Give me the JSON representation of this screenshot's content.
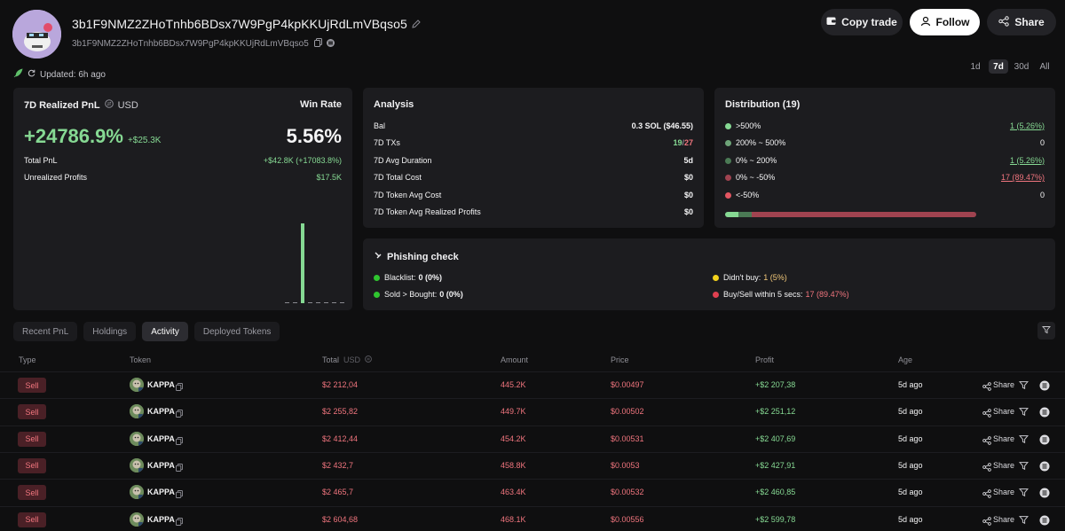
{
  "header": {
    "address": "3b1F9NMZ2ZHoTnhb6BDsx7W9PgP4kpKKUjRdLmVBqso5",
    "address_short": "3b1F9NMZ2ZHoTnhb6BDsx7W9PgP4kpKKUjRdLmVBqso5",
    "copy_trade_label": "Copy trade",
    "follow_label": "Follow",
    "share_label": "Share",
    "updated_text": "Updated: 6h ago"
  },
  "range_tabs": [
    "1d",
    "7d",
    "30d",
    "All"
  ],
  "range_selected": "7d",
  "pnl_card": {
    "title": "7D Realized PnL",
    "currency": "USD",
    "pnl_percent": "+24786.9%",
    "pnl_usd": "+$25.3K",
    "win_rate_label": "Win Rate",
    "win_rate": "5.56%",
    "total_pnl_label": "Total PnL",
    "total_pnl_value": "+$42.8K (+17083.8%)",
    "unrealized_label": "Unrealized Profits",
    "unrealized_value": "$17.5K"
  },
  "analysis": {
    "title": "Analysis",
    "rows": [
      {
        "label": "Bal",
        "value": "0.3 SOL ($46.55)"
      },
      {
        "label": "7D TXs",
        "value_green": "19",
        "value_sep": "/",
        "value_red": "27"
      },
      {
        "label": "7D Avg Duration",
        "value": "5d"
      },
      {
        "label": "7D Total Cost",
        "value": "$0"
      },
      {
        "label": "7D Token Avg Cost",
        "value": "$0"
      },
      {
        "label": "7D Token Avg Realized Profits",
        "value": "$0"
      }
    ]
  },
  "distribution": {
    "title": "Distribution (19)",
    "rows": [
      {
        "label": ">500%",
        "value": "1 (5.26%)",
        "color": "#86d993"
      },
      {
        "label": "200% ~ 500%",
        "value": "0",
        "color": "#6ea478"
      },
      {
        "label": "0% ~ 200%",
        "value": "1 (5.26%)",
        "color": "#4b7a55"
      },
      {
        "label": "0% ~ -50%",
        "value": "17 (89.47%)",
        "color": "#a04350"
      },
      {
        "label": "<-50%",
        "value": "0",
        "color": "#e25561"
      }
    ],
    "bar_segments": [
      0.0526,
      0.0526,
      0.8947
    ]
  },
  "phishing": {
    "title": "Phishing check",
    "blacklist_label": "Blacklist:",
    "blacklist_value": "0 (0%)",
    "sold_label": "Sold > Bought:",
    "sold_value": "0 (0%)",
    "didnt_buy_label": "Didn't buy:",
    "didnt_buy_value": "1 (5%)",
    "fast_label": "Buy/Sell within 5 secs:",
    "fast_value": "17 (89.47%)"
  },
  "tabs": [
    "Recent PnL",
    "Holdings",
    "Activity",
    "Deployed Tokens"
  ],
  "active_tab": "Activity",
  "table": {
    "headers": {
      "type": "Type",
      "token": "Token",
      "total": "Total",
      "total_unit": "USD",
      "amount": "Amount",
      "price": "Price",
      "profit": "Profit",
      "age": "Age"
    },
    "share_label": "Share",
    "rows": [
      {
        "type": "Sell",
        "token": "KAPPA",
        "total": "$2 212,04",
        "amount": "445.2K",
        "price": "$0.00497",
        "profit": "+$2 207,38",
        "age": "5d ago"
      },
      {
        "type": "Sell",
        "token": "KAPPA",
        "total": "$2 255,82",
        "amount": "449.7K",
        "price": "$0.00502",
        "profit": "+$2 251,12",
        "age": "5d ago"
      },
      {
        "type": "Sell",
        "token": "KAPPA",
        "total": "$2 412,44",
        "amount": "454.2K",
        "price": "$0.00531",
        "profit": "+$2 407,69",
        "age": "5d ago"
      },
      {
        "type": "Sell",
        "token": "KAPPA",
        "total": "$2 432,7",
        "amount": "458.8K",
        "price": "$0.0053",
        "profit": "+$2 427,91",
        "age": "5d ago"
      },
      {
        "type": "Sell",
        "token": "KAPPA",
        "total": "$2 465,7",
        "amount": "463.4K",
        "price": "$0.00532",
        "profit": "+$2 460,85",
        "age": "5d ago"
      },
      {
        "type": "Sell",
        "token": "KAPPA",
        "total": "$2 604,68",
        "amount": "468.1K",
        "price": "$0.00556",
        "profit": "+$2 599,78",
        "age": "5d ago"
      }
    ]
  },
  "chart_data": {
    "type": "bar",
    "bars": [
      0,
      0,
      1,
      0,
      0,
      0,
      0,
      0
    ]
  }
}
